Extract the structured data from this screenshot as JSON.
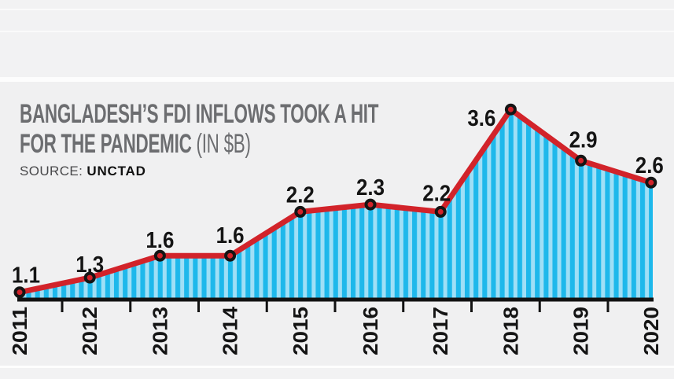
{
  "header": {
    "title_line1": "BANGLADESH’S FDI INFLOWS TOOK A HIT",
    "title_line2_bold": "FOR THE PANDEMIC",
    "title_unit": "(IN $B)",
    "source_label": "SOURCE:",
    "source_value": "UNCTAD"
  },
  "chart_data": {
    "type": "area",
    "title": "BANGLADESH’S FDI INFLOWS TOOK A HIT FOR THE PANDEMIC (IN $B)",
    "source": "UNCTAD",
    "unit": "$B",
    "categories": [
      "2011",
      "2012",
      "2013",
      "2014",
      "2015",
      "2016",
      "2017",
      "2018",
      "2019",
      "2020"
    ],
    "values": [
      1.1,
      1.3,
      1.6,
      1.6,
      2.2,
      2.3,
      2.2,
      3.6,
      2.9,
      2.6
    ],
    "series_name": "FDI inflows",
    "xlabel": "",
    "ylabel": "FDI inflows (in $B)",
    "ylim": [
      1.0,
      3.9
    ],
    "grid": false,
    "legend": "none",
    "data_labels": [
      "1.1",
      "1.3",
      "1.6",
      "1.6",
      "2.2",
      "2.3",
      "2.2",
      "3.6",
      "2.9",
      "2.6"
    ],
    "colors": {
      "line": "#d2232a",
      "marker_fill": "#d2232a",
      "marker_stroke": "#151515",
      "stripe_dark": "#1eb8eb",
      "stripe_light": "#9fdff6",
      "axis": "#121212",
      "label": "#141414",
      "title": "#6c6d70"
    }
  }
}
